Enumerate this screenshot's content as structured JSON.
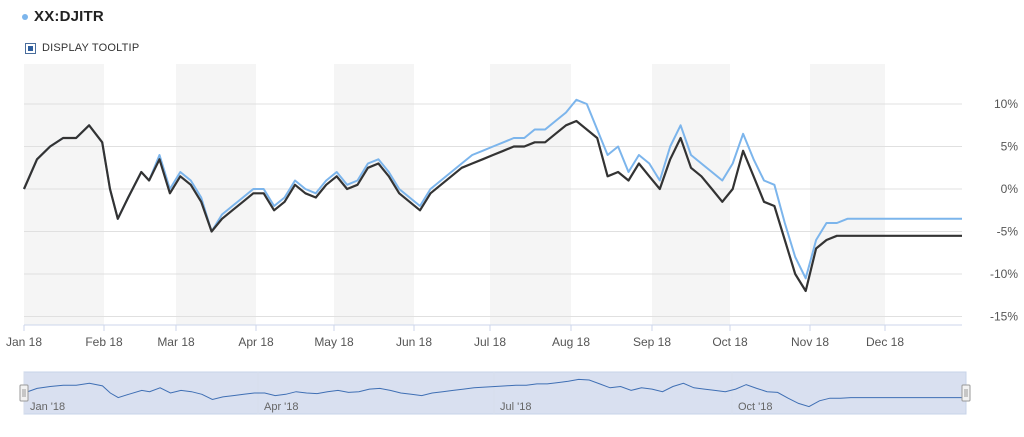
{
  "header": {
    "title": "XX:DJITR",
    "accent": "#7cb5ec"
  },
  "controls": {
    "tooltip_label": "DISPLAY TOOLTIP",
    "tooltip_checked": true
  },
  "chart_data": {
    "type": "line",
    "title": "XX:DJITR",
    "y_unit": "%",
    "ylim": [
      -15,
      10
    ],
    "y_ticks": [
      10,
      5,
      0,
      -5,
      -10,
      -15
    ],
    "y_tick_labels": [
      "10%",
      "5%",
      "0%",
      "-5%",
      "-10%",
      "-15%"
    ],
    "x_ticks": [
      "Jan 18",
      "Feb 18",
      "Mar 18",
      "Apr 18",
      "May 18",
      "Jun 18",
      "Jul 18",
      "Aug 18",
      "Sep 18",
      "Oct 18",
      "Nov 18",
      "Dec 18"
    ],
    "grid": true,
    "legend": "none",
    "series": [
      {
        "color": "#7cb5ec",
        "x": [
          0,
          5,
          10,
          15,
          20,
          25,
          30,
          33,
          36,
          40,
          45,
          48,
          52,
          56,
          60,
          64,
          68,
          72,
          76,
          80,
          84,
          88,
          92,
          96,
          100,
          104,
          108,
          112,
          116,
          120,
          124,
          128,
          132,
          136,
          140,
          144,
          148,
          152,
          156,
          160,
          164,
          168,
          172,
          176,
          180,
          184,
          188,
          192,
          196,
          200,
          204,
          208,
          212,
          216,
          220,
          224,
          228,
          232,
          236,
          240,
          244,
          248,
          252,
          256,
          260,
          264,
          268,
          272,
          276,
          280,
          284,
          288,
          292,
          296,
          300,
          304,
          308,
          312,
          316,
          320,
          324,
          328,
          332,
          336,
          340,
          344,
          348,
          352,
          356,
          360
        ],
        "y": [
          0,
          3.5,
          5,
          6,
          6,
          7.5,
          5.5,
          0,
          -3.5,
          -1,
          2,
          1,
          4,
          0,
          2,
          1,
          -1,
          -5,
          -3,
          -2,
          -1,
          0,
          0,
          -2,
          -1,
          1,
          0,
          -0.5,
          1,
          2,
          0.5,
          1,
          3,
          3.5,
          2,
          0,
          -1,
          -2,
          0,
          1,
          2,
          3,
          4,
          4.5,
          5,
          5.5,
          6,
          6,
          7,
          7,
          8,
          9,
          10.5,
          10,
          7,
          4,
          5,
          2,
          4,
          3,
          1,
          5,
          7.5,
          4,
          3,
          2,
          1,
          3,
          6.5,
          3.5,
          1,
          0.5,
          -4,
          -8,
          -10.5,
          -6,
          -4,
          -4,
          -3.5,
          -3.5,
          -3.5,
          -3.5,
          -3.5,
          -3.5,
          -3.5,
          -3.5,
          -3.5,
          -3.5,
          -3.5,
          -3.5
        ]
      },
      {
        "color": "#333333",
        "x": [
          0,
          5,
          10,
          15,
          20,
          25,
          30,
          33,
          36,
          40,
          45,
          48,
          52,
          56,
          60,
          64,
          68,
          72,
          76,
          80,
          84,
          88,
          92,
          96,
          100,
          104,
          108,
          112,
          116,
          120,
          124,
          128,
          132,
          136,
          140,
          144,
          148,
          152,
          156,
          160,
          164,
          168,
          172,
          176,
          180,
          184,
          188,
          192,
          196,
          200,
          204,
          208,
          212,
          216,
          220,
          224,
          228,
          232,
          236,
          240,
          244,
          248,
          252,
          256,
          260,
          264,
          268,
          272,
          276,
          280,
          284,
          288,
          292,
          296,
          300,
          304,
          308,
          312,
          316,
          320,
          324,
          328,
          332,
          336,
          340,
          344,
          348,
          352,
          356,
          360
        ],
        "y": [
          0,
          3.5,
          5,
          6,
          6,
          7.5,
          5.5,
          0,
          -3.5,
          -1,
          2,
          1,
          3.5,
          -0.5,
          1.5,
          0.5,
          -1.5,
          -5,
          -3.5,
          -2.5,
          -1.5,
          -0.5,
          -0.5,
          -2.5,
          -1.5,
          0.5,
          -0.5,
          -1,
          0.5,
          1.5,
          0,
          0.5,
          2.5,
          3,
          1.5,
          -0.5,
          -1.5,
          -2.5,
          -0.5,
          0.5,
          1.5,
          2.5,
          3,
          3.5,
          4,
          4.5,
          5,
          5,
          5.5,
          5.5,
          6.5,
          7.5,
          8,
          7,
          6,
          1.5,
          2,
          1,
          3,
          1.5,
          0,
          3.5,
          6,
          2.5,
          1.5,
          0,
          -1.5,
          0,
          4.5,
          1.5,
          -1.5,
          -2,
          -6,
          -10,
          -12,
          -7,
          -6,
          -5.5,
          -5.5,
          -5.5,
          -5.5,
          -5.5,
          -5.5,
          -5.5,
          -5.5,
          -5.5,
          -5.5,
          -5.5,
          -5.5,
          -5.5
        ]
      }
    ],
    "navigator": {
      "x_ticks": [
        "Jan '18",
        "Apr '18",
        "Jul '18",
        "Oct '18"
      ]
    }
  }
}
